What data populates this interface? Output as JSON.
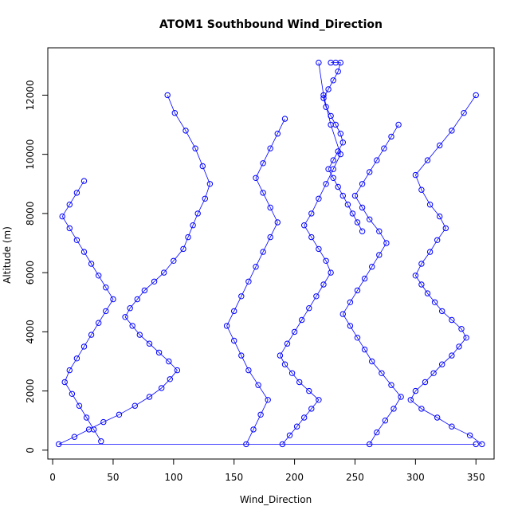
{
  "chart_data": {
    "type": "scatter",
    "title": "ATOM1 Southbound Wind_Direction",
    "xlabel": "Wind_Direction",
    "ylabel": "Altitude (m)",
    "xlim": [
      -4,
      365
    ],
    "ylim": [
      -300,
      13600
    ],
    "x_ticks": [
      0,
      50,
      100,
      150,
      200,
      250,
      300,
      350
    ],
    "y_ticks": [
      0,
      2000,
      4000,
      6000,
      8000,
      10000,
      12000
    ],
    "grid": false,
    "legend": "none",
    "marker": "open-circle",
    "connect_points": true,
    "color": "#0000ff",
    "series": [
      {
        "x": [
          350,
          5,
          18,
          30,
          42,
          55,
          68,
          80,
          90,
          97,
          103,
          96,
          88,
          80,
          72,
          66,
          60,
          64,
          70,
          76,
          84,
          92,
          100,
          108,
          112,
          116,
          120,
          126,
          130,
          124,
          118,
          110,
          101,
          95
        ],
        "y": [
          200,
          200,
          450,
          700,
          950,
          1200,
          1500,
          1800,
          2100,
          2400,
          2700,
          3000,
          3300,
          3600,
          3900,
          4200,
          4500,
          4800,
          5100,
          5400,
          5700,
          6000,
          6400,
          6800,
          7200,
          7600,
          8000,
          8500,
          9000,
          9600,
          10200,
          10800,
          11400,
          12000
        ]
      },
      {
        "x": [
          355,
          345,
          330,
          318,
          305,
          296,
          300,
          308,
          315,
          322,
          330,
          336,
          342,
          338,
          330,
          322,
          316,
          310,
          305,
          300,
          305,
          312,
          318,
          325,
          320,
          312,
          305,
          300,
          310,
          320,
          330,
          340,
          350
        ],
        "y": [
          200,
          500,
          800,
          1100,
          1400,
          1700,
          2000,
          2300,
          2600,
          2900,
          3200,
          3500,
          3800,
          4100,
          4400,
          4700,
          5000,
          5300,
          5600,
          5900,
          6300,
          6700,
          7100,
          7500,
          7900,
          8300,
          8800,
          9300,
          9800,
          10300,
          10800,
          11400,
          12000
        ]
      },
      {
        "x": [
          190,
          196,
          202,
          208,
          214,
          220,
          212,
          204,
          198,
          192,
          188,
          194,
          200,
          206,
          212,
          218,
          224,
          230,
          226,
          220,
          214,
          208,
          214,
          220,
          226,
          232,
          238,
          230,
          224,
          220
        ],
        "y": [
          200,
          500,
          800,
          1100,
          1400,
          1700,
          2000,
          2300,
          2600,
          2900,
          3200,
          3600,
          4000,
          4400,
          4800,
          5200,
          5600,
          6000,
          6400,
          6800,
          7200,
          7600,
          8000,
          8500,
          9000,
          9500,
          10000,
          11000,
          12000,
          13100
        ]
      },
      {
        "x": [
          262,
          268,
          275,
          282,
          288,
          280,
          272,
          264,
          258,
          252,
          246,
          240,
          246,
          252,
          258,
          264,
          270,
          276,
          270,
          262,
          256,
          250,
          256,
          262,
          268,
          274,
          280,
          286
        ],
        "y": [
          200,
          600,
          1000,
          1400,
          1800,
          2200,
          2600,
          3000,
          3400,
          3800,
          4200,
          4600,
          5000,
          5400,
          5800,
          6200,
          6600,
          7000,
          7400,
          7800,
          8200,
          8600,
          9000,
          9400,
          9800,
          10200,
          10600,
          11000
        ]
      },
      {
        "x": [
          160,
          166,
          172,
          178,
          170,
          162,
          156,
          150,
          144,
          150,
          156,
          162,
          168,
          174,
          180,
          186,
          180,
          174,
          168,
          174,
          180,
          186,
          192
        ],
        "y": [
          200,
          700,
          1200,
          1700,
          2200,
          2700,
          3200,
          3700,
          4200,
          4700,
          5200,
          5700,
          6200,
          6700,
          7200,
          7700,
          8200,
          8700,
          9200,
          9700,
          10200,
          10700,
          11200
        ]
      },
      {
        "x": [
          40,
          34,
          28,
          22,
          16,
          10,
          14,
          20,
          26,
          32,
          38,
          44,
          50,
          44,
          38,
          32,
          26,
          20,
          14,
          8,
          14,
          20,
          26
        ],
        "y": [
          300,
          700,
          1100,
          1500,
          1900,
          2300,
          2700,
          3100,
          3500,
          3900,
          4300,
          4700,
          5100,
          5500,
          5900,
          6300,
          6700,
          7100,
          7500,
          7900,
          8300,
          8700,
          9100
        ]
      },
      {
        "x": [
          230,
          234,
          238,
          236,
          232,
          228,
          224,
          226,
          230,
          234,
          238,
          240,
          236,
          232,
          228,
          232,
          236,
          240,
          244,
          248,
          252,
          256
        ],
        "y": [
          13100,
          13100,
          13100,
          12800,
          12500,
          12200,
          11900,
          11600,
          11300,
          11000,
          10700,
          10400,
          10100,
          9800,
          9500,
          9200,
          8900,
          8600,
          8300,
          8000,
          7700,
          7400
        ]
      }
    ]
  }
}
